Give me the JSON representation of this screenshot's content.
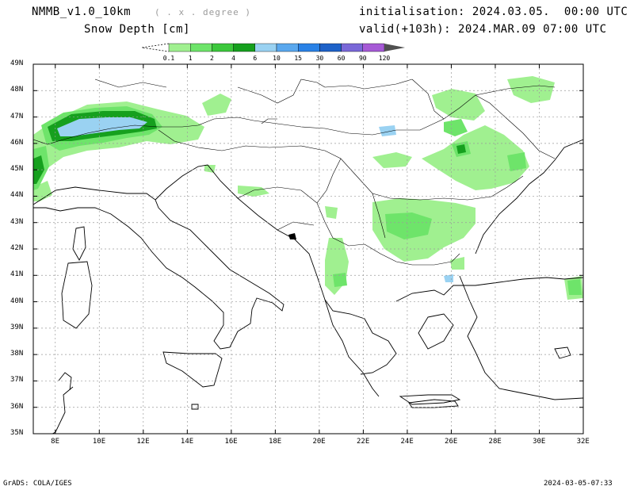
{
  "header": {
    "model": "NMMB_v1.0_10km",
    "grid_note": "( . x . degree )",
    "field": "Snow Depth [cm]",
    "init": "initialisation: 2024.03.05.  00:00 UTC",
    "valid": "valid(+103h): 2024.MAR.09 07:00 UTC"
  },
  "colorbar": {
    "levels": [
      "0.1",
      "1",
      "2",
      "4",
      "6",
      "10",
      "15",
      "30",
      "60",
      "90",
      "120"
    ],
    "colors": [
      "#a0f090",
      "#6ee46a",
      "#3cc83c",
      "#16a01e",
      "#9ad2f2",
      "#5aa8ee",
      "#2a82e6",
      "#1e62c8",
      "#7a68d8",
      "#a65ad6",
      "#505050"
    ]
  },
  "map": {
    "lat_labels": [
      "49N",
      "48N",
      "47N",
      "46N",
      "45N",
      "44N",
      "43N",
      "42N",
      "41N",
      "40N",
      "39N",
      "38N",
      "37N",
      "36N",
      "35N"
    ],
    "lon_labels": [
      "8E",
      "10E",
      "12E",
      "14E",
      "16E",
      "18E",
      "20E",
      "22E",
      "24E",
      "26E",
      "28E",
      "30E",
      "32E"
    ],
    "lat_range": [
      35,
      49
    ],
    "lon_range": [
      7,
      32
    ]
  },
  "footer": {
    "left": "GrADS: COLA/IGES",
    "right": "2024-03-05-07:33"
  }
}
